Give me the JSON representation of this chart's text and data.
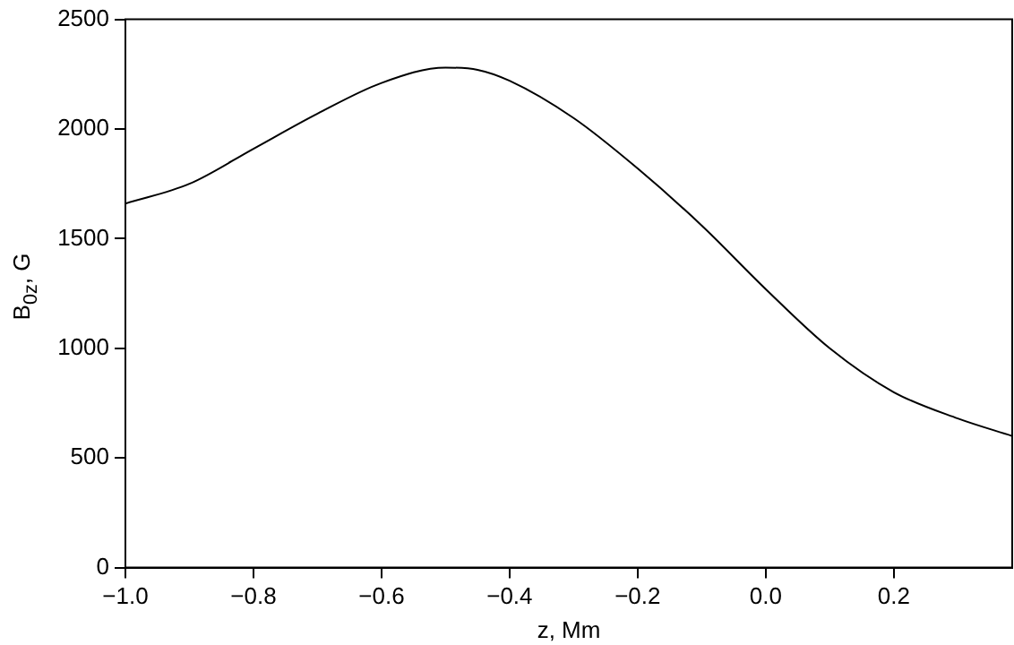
{
  "chart_data": {
    "type": "line",
    "xlabel": "z, Mm",
    "ylabel": "B$_{0z}$, G",
    "x": [
      -1.0,
      -0.9,
      -0.8,
      -0.7,
      -0.6,
      -0.5,
      -0.45,
      -0.4,
      -0.3,
      -0.2,
      -0.1,
      0.0,
      0.1,
      0.2,
      0.3,
      0.385
    ],
    "series": [
      {
        "color": "#000000",
        "values": [
          1660,
          1750,
          1910,
          2070,
          2210,
          2280,
          2270,
          2220,
          2050,
          1820,
          1560,
          1270,
          1000,
          800,
          680,
          600
        ]
      }
    ],
    "xlim": [
      -1.0,
      0.385
    ],
    "xticks": [
      {
        "value": -1.0,
        "label": "−1.0"
      },
      {
        "value": -0.8,
        "label": "−0.8"
      },
      {
        "value": -0.6,
        "label": "−0.6"
      },
      {
        "value": -0.4,
        "label": "−0.4"
      },
      {
        "value": -0.2,
        "label": "−0.2"
      },
      {
        "value": 0.0,
        "label": "0.0"
      },
      {
        "value": 0.2,
        "label": "0.2"
      }
    ],
    "ylim": [
      0,
      2500
    ],
    "yticks": [
      0,
      500,
      1000,
      1500,
      2000,
      2500
    ],
    "grid": false,
    "legend": false,
    "marker": "none",
    "line_style": "solid"
  }
}
